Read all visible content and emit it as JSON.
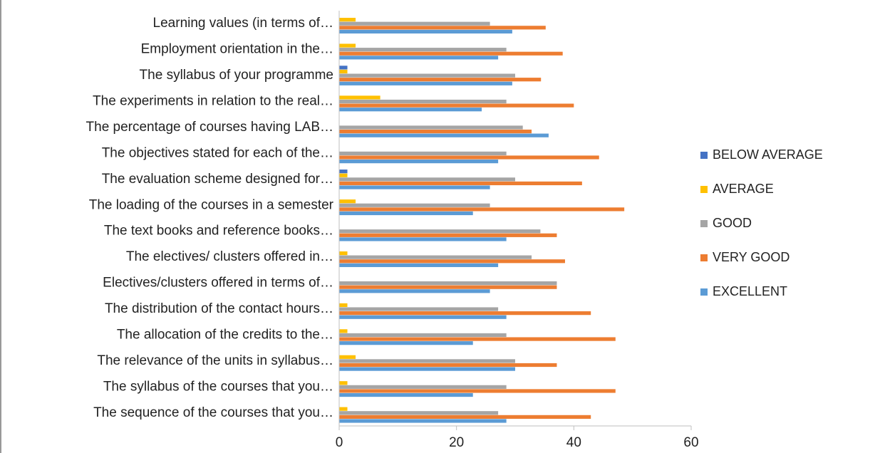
{
  "chart_data": {
    "type": "hbar",
    "categories": [
      "Learning values (in terms of…",
      "Employment orientation in the…",
      "The syllabus of your programme",
      "The experiments in relation to the real…",
      "The percentage of courses having LAB…",
      "The objectives stated for each of the…",
      "The evaluation scheme designed for…",
      "The loading of the courses in a semester",
      "The text books and reference books…",
      "The electives/ clusters offered in…",
      "Electives/clusters offered in terms of…",
      "The distribution of the contact hours…",
      "The allocation of the credits to the…",
      "The relevance of the units in syllabus…",
      "The syllabus of the courses that you…",
      "The sequence of the courses that you…"
    ],
    "series": [
      {
        "name": "BELOW AVERAGE",
        "color": "#4472c4",
        "values": [
          0,
          0,
          1.4,
          0,
          0,
          0,
          1.4,
          0,
          0,
          0,
          0,
          0,
          0,
          0,
          0,
          0
        ]
      },
      {
        "name": "AVERAGE",
        "color": "#ffc000",
        "values": [
          2.8,
          2.8,
          1.4,
          7.0,
          0,
          0,
          1.4,
          2.8,
          0,
          1.4,
          0,
          1.4,
          1.4,
          2.8,
          1.4,
          1.4
        ]
      },
      {
        "name": "GOOD",
        "color": "#a5a5a5",
        "values": [
          25.7,
          28.5,
          30.0,
          28.5,
          31.3,
          28.5,
          30.0,
          25.7,
          34.3,
          32.8,
          37.1,
          27.1,
          28.5,
          30.0,
          28.5,
          27.1
        ]
      },
      {
        "name": "VERY GOOD",
        "color": "#ed7d31",
        "values": [
          35.2,
          38.1,
          34.4,
          40.0,
          32.8,
          44.3,
          41.4,
          48.6,
          37.1,
          38.5,
          37.1,
          42.9,
          47.1,
          37.1,
          47.1,
          42.9
        ]
      },
      {
        "name": "EXCELLENT",
        "color": "#5b9bd5",
        "values": [
          29.5,
          27.1,
          29.5,
          24.3,
          35.7,
          27.1,
          25.7,
          22.8,
          28.5,
          27.1,
          25.7,
          28.5,
          22.8,
          30.0,
          22.8,
          28.5
        ]
      }
    ],
    "xlim": [
      0,
      60
    ],
    "xticks": [
      0,
      20,
      40,
      60
    ],
    "legend": "right"
  }
}
